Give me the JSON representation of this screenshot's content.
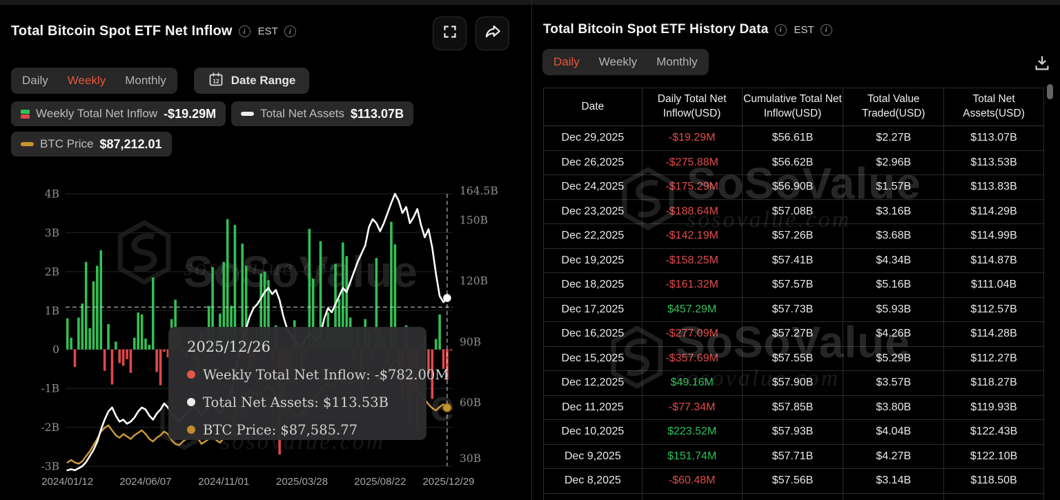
{
  "left_panel": {
    "title": "Total Bitcoin Spot ETF Net Inflow",
    "est_label": "EST",
    "tabs": [
      "Daily",
      "Weekly",
      "Monthly"
    ],
    "active_tab": "Weekly",
    "date_range_label": "Date Range",
    "calendar_day": "12",
    "legend": [
      {
        "label": "Weekly Total Net Inflow",
        "value": "-$19.29M"
      },
      {
        "label": "Total Net Assets",
        "value": "$113.07B"
      },
      {
        "label": "BTC Price",
        "value": "$87,212.01"
      }
    ]
  },
  "tooltip": {
    "date": "2025/12/26",
    "rows": [
      {
        "label": "Weekly Total Net Inflow",
        "value": "-$782.00M",
        "color": "#e25649",
        "text": "Weekly Total Net Inflow: -$782.00M"
      },
      {
        "label": "Total Net Assets",
        "value": "$113.53B",
        "color": "#ededed",
        "text": "Total Net Assets: $113.53B"
      },
      {
        "label": "BTC Price",
        "value": "$87,585.77",
        "color": "#c08c2c",
        "text": "BTC Price: $87,585.77"
      }
    ]
  },
  "watermark": {
    "brand": "SoSoValue",
    "domain": "sosovalue.com"
  },
  "right_panel": {
    "title": "Total Bitcoin Spot ETF History Data",
    "est_label": "EST",
    "tabs": [
      "Daily",
      "Weekly",
      "Monthly"
    ],
    "active_tab": "Daily",
    "table": {
      "columns": [
        "Date",
        "Daily Total Net Inflow(USD)",
        "Cumulative Total Net Inflow(USD)",
        "Total Value Traded(USD)",
        "Total Net Assets(USD)"
      ],
      "rows": [
        {
          "date": "Dec 29,2025",
          "inflow": "-$19.29M",
          "sign": "neg",
          "cumulative": "$56.61B",
          "traded": "$2.27B",
          "assets": "$113.07B"
        },
        {
          "date": "Dec 26,2025",
          "inflow": "-$275.88M",
          "sign": "neg",
          "cumulative": "$56.62B",
          "traded": "$2.96B",
          "assets": "$113.53B"
        },
        {
          "date": "Dec 24,2025",
          "inflow": "-$175.29M",
          "sign": "neg",
          "cumulative": "$56.90B",
          "traded": "$1.57B",
          "assets": "$113.83B"
        },
        {
          "date": "Dec 23,2025",
          "inflow": "-$188.64M",
          "sign": "neg",
          "cumulative": "$57.08B",
          "traded": "$3.16B",
          "assets": "$114.29B"
        },
        {
          "date": "Dec 22,2025",
          "inflow": "-$142.19M",
          "sign": "neg",
          "cumulative": "$57.26B",
          "traded": "$3.68B",
          "assets": "$114.99B"
        },
        {
          "date": "Dec 19,2025",
          "inflow": "-$158.25M",
          "sign": "neg",
          "cumulative": "$57.41B",
          "traded": "$4.34B",
          "assets": "$114.87B"
        },
        {
          "date": "Dec 18,2025",
          "inflow": "-$161.32M",
          "sign": "neg",
          "cumulative": "$57.57B",
          "traded": "$5.16B",
          "assets": "$111.04B"
        },
        {
          "date": "Dec 17,2025",
          "inflow": "$457.29M",
          "sign": "pos",
          "cumulative": "$57.73B",
          "traded": "$5.93B",
          "assets": "$112.57B"
        },
        {
          "date": "Dec 16,2025",
          "inflow": "-$277.09M",
          "sign": "neg",
          "cumulative": "$57.27B",
          "traded": "$4.26B",
          "assets": "$114.28B"
        },
        {
          "date": "Dec 15,2025",
          "inflow": "-$357.69M",
          "sign": "neg",
          "cumulative": "$57.55B",
          "traded": "$5.29B",
          "assets": "$112.27B"
        },
        {
          "date": "Dec 12,2025",
          "inflow": "$49.16M",
          "sign": "pos",
          "cumulative": "$57.90B",
          "traded": "$3.57B",
          "assets": "$118.27B"
        },
        {
          "date": "Dec 11,2025",
          "inflow": "-$77.34M",
          "sign": "neg",
          "cumulative": "$57.85B",
          "traded": "$3.80B",
          "assets": "$119.93B"
        },
        {
          "date": "Dec 10,2025",
          "inflow": "$223.52M",
          "sign": "pos",
          "cumulative": "$57.93B",
          "traded": "$4.04B",
          "assets": "$122.43B"
        },
        {
          "date": "Dec 9,2025",
          "inflow": "$151.74M",
          "sign": "pos",
          "cumulative": "$57.71B",
          "traded": "$4.27B",
          "assets": "$122.10B"
        },
        {
          "date": "Dec 8,2025",
          "inflow": "-$60.48M",
          "sign": "neg",
          "cumulative": "$57.56B",
          "traded": "$3.14B",
          "assets": "$118.50B"
        }
      ]
    }
  },
  "chart_data": {
    "type": "bar+line combo (weekly bars, two overlay lines)",
    "title": "Total Bitcoin Spot ETF Net Inflow (Weekly)",
    "x_axis": {
      "labels": [
        "2024/01/12",
        "2024/06/07",
        "2024/11/01",
        "2025/03/28",
        "2025/08/22",
        "2025/12/29"
      ],
      "label_indices": [
        0,
        21,
        42,
        63,
        84,
        103
      ]
    },
    "left_axis": {
      "labels": [
        "4B",
        "3B",
        "2B",
        "1B",
        "0",
        "-1B",
        "-2B",
        "-3B"
      ],
      "values": [
        4,
        3,
        2,
        1,
        0,
        -1,
        -2,
        -3
      ],
      "range": [
        -3,
        4
      ]
    },
    "right_axis": {
      "labels": [
        "164.5B",
        "150B",
        "120B",
        "90B",
        "60B",
        "30B"
      ],
      "values": [
        164.5,
        150,
        120,
        90,
        60,
        30
      ],
      "range": [
        30,
        164.5
      ]
    },
    "btc_axis_range_thousand_usd": [
      40,
      260
    ],
    "grid": "horizontal only",
    "legend_position": "top-left chips",
    "series": [
      {
        "name": "Weekly Total Net Inflow",
        "type": "bar",
        "unit": "billion USD",
        "color_positive": "#33bf55",
        "color_negative": "#e1484a",
        "values": [
          0.8,
          0.3,
          -0.45,
          0.82,
          1.18,
          2.25,
          0.55,
          1.75,
          2.15,
          2.55,
          -0.55,
          0.65,
          -0.9,
          0.2,
          -0.35,
          -0.42,
          -0.25,
          -0.6,
          0.3,
          0.95,
          0.9,
          0.28,
          0.12,
          1.85,
          -0.58,
          -0.92,
          -0.06,
          -0.2,
          0.78,
          1.28,
          0.52,
          -0.12,
          -0.22,
          0.32,
          -0.32,
          -0.72,
          0.42,
          0.18,
          1.12,
          2.12,
          0.28,
          0.92,
          2.25,
          3.35,
          1.12,
          3.2,
          -0.18,
          2.72,
          2.15,
          -0.62,
          -0.45,
          0.52,
          1.95,
          2.0,
          1.78,
          -0.25,
          0.62,
          -2.7,
          -1.15,
          -0.85,
          -0.95,
          0.75,
          0.22,
          -0.72,
          -0.18,
          3.1,
          1.82,
          0.55,
          2.78,
          0.25,
          0.95,
          0.5,
          2.2,
          1.3,
          2.75,
          2.4,
          0.82,
          -0.25,
          0.55,
          -1.05,
          0.78,
          0.42,
          -0.28,
          2.35,
          0.55,
          0.3,
          -0.4,
          3.28,
          2.7,
          -0.42,
          -1.25,
          0.62,
          -1.95,
          -1.12,
          -2.05,
          0.12,
          0.32,
          -0.62,
          -1.27,
          0.27,
          0.9,
          -0.5,
          -0.78,
          -0.02
        ]
      },
      {
        "name": "Total Net Assets",
        "type": "line",
        "unit": "billion USD",
        "color": "#ffffff",
        "end_value": 113.07,
        "values": [
          28,
          28.5,
          28,
          29,
          30,
          32,
          35,
          38,
          42,
          48,
          53,
          57,
          59,
          55,
          52,
          53,
          51,
          52,
          54,
          57,
          59,
          58,
          55,
          53,
          56,
          58,
          61,
          59,
          56,
          54,
          52,
          54,
          56,
          58,
          60,
          58,
          55,
          57,
          59,
          61,
          58,
          56,
          59,
          63,
          66,
          75,
          85,
          92,
          98,
          104,
          108,
          110,
          113,
          116,
          118,
          115,
          117,
          112,
          104,
          98,
          95,
          92,
          90,
          89,
          93,
          96,
          94,
          92,
          95,
          103,
          108,
          106,
          110,
          114,
          118,
          116,
          121,
          126,
          131,
          135,
          139,
          148,
          152,
          150,
          146,
          150,
          155,
          160,
          164.5,
          161,
          155,
          158,
          150,
          153,
          157,
          149,
          143,
          147,
          138,
          125,
          114,
          111,
          113.07,
          113.07
        ]
      },
      {
        "name": "BTC Price",
        "type": "line",
        "unit": "thousand USD",
        "color": "#d39b3b",
        "end_value": 87.21,
        "values": [
          43,
          45,
          43,
          42,
          44,
          48,
          52,
          57,
          62,
          68,
          71,
          73,
          69,
          65,
          63,
          66,
          64,
          62,
          65,
          67,
          69,
          66,
          62,
          60,
          63,
          65,
          68,
          66,
          61,
          58,
          57,
          60,
          62,
          64,
          66,
          63,
          58,
          60,
          62,
          64,
          61,
          59,
          63,
          68,
          72,
          80,
          88,
          92,
          97,
          101,
          99,
          97,
          99,
          102,
          105,
          102,
          97,
          94,
          88,
          84,
          86,
          82,
          80,
          83,
          85,
          88,
          94,
          97,
          102,
          104,
          107,
          105,
          108,
          110,
          108,
          106,
          107,
          108,
          109,
          112,
          115,
          117,
          114,
          112,
          110,
          113,
          116,
          121,
          126,
          122,
          117,
          113,
          109,
          106,
          102,
          98,
          94,
          90,
          87,
          85,
          88,
          90,
          87.21,
          87.21
        ]
      }
    ],
    "crosshair": {
      "x_index": 102,
      "y_left_axis_value": 1.09
    }
  }
}
